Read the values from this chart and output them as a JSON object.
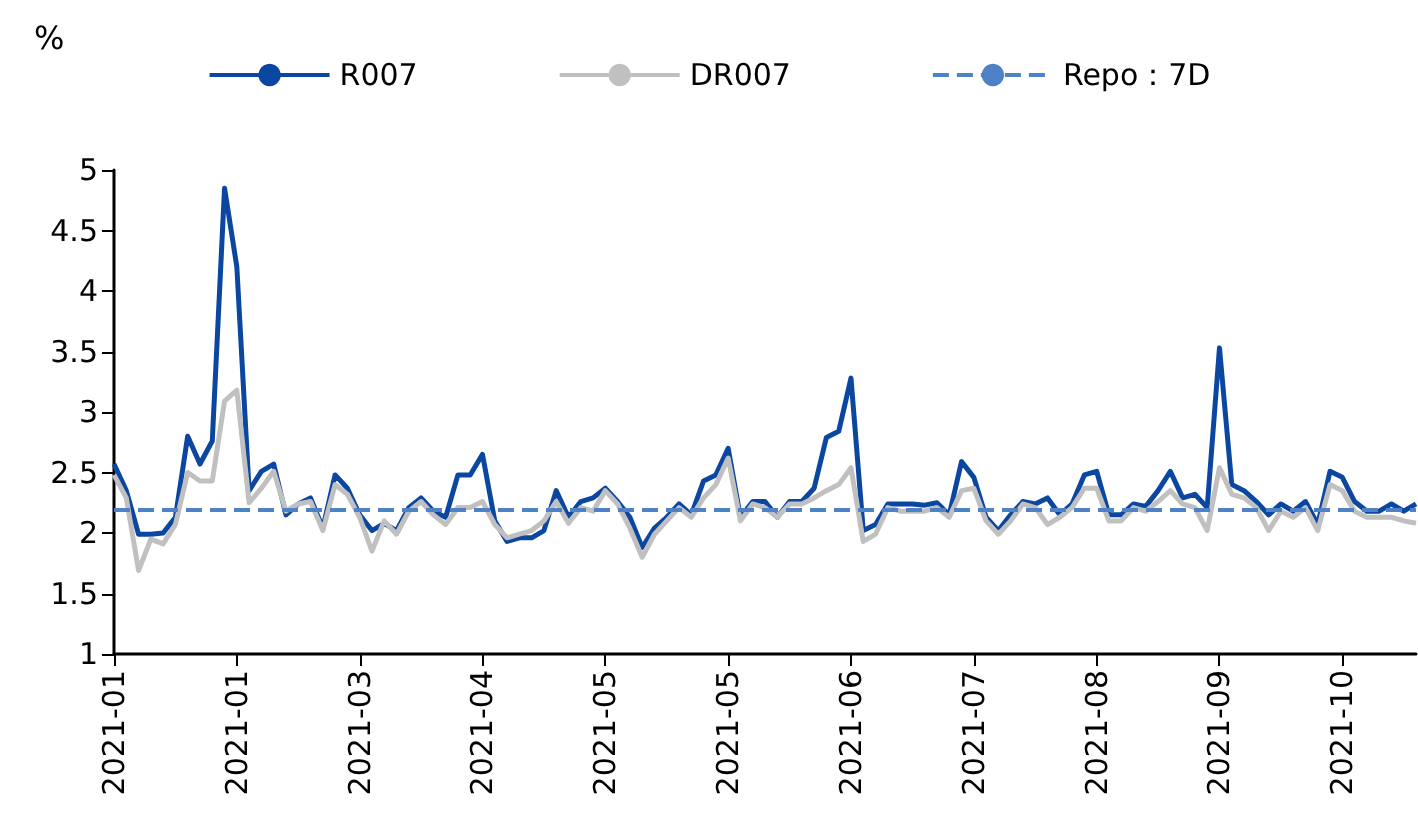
{
  "chart_data": {
    "type": "line",
    "ylabel": "%",
    "categories": [
      "2021-01",
      null,
      null,
      null,
      null,
      null,
      null,
      null,
      null,
      null,
      "2021-01",
      null,
      null,
      null,
      null,
      null,
      null,
      null,
      null,
      null,
      "2021-03",
      null,
      null,
      null,
      null,
      null,
      null,
      null,
      null,
      null,
      "2021-04",
      null,
      null,
      null,
      null,
      null,
      null,
      null,
      null,
      null,
      "2021-05",
      null,
      null,
      null,
      null,
      null,
      null,
      null,
      null,
      null,
      "2021-05",
      null,
      null,
      null,
      null,
      null,
      null,
      null,
      null,
      null,
      "2021-06",
      null,
      null,
      null,
      null,
      null,
      null,
      null,
      null,
      null,
      "2021-07",
      null,
      null,
      null,
      null,
      null,
      null,
      null,
      null,
      null,
      "2021-08",
      null,
      null,
      null,
      null,
      null,
      null,
      null,
      null,
      null,
      "2021-09",
      null,
      null,
      null,
      null,
      null,
      null,
      null,
      null,
      null,
      "2021-10",
      null,
      null,
      null,
      null,
      null,
      null
    ],
    "series": [
      {
        "name": "R007",
        "color": "#0b47a1",
        "values": [
          2.57,
          2.35,
          1.99,
          1.99,
          2.0,
          2.13,
          2.8,
          2.57,
          2.76,
          4.85,
          4.2,
          2.35,
          2.51,
          2.57,
          2.15,
          2.24,
          2.29,
          2.04,
          2.48,
          2.37,
          2.15,
          2.02,
          2.08,
          2.02,
          2.21,
          2.29,
          2.18,
          2.13,
          2.48,
          2.48,
          2.65,
          2.1,
          1.93,
          1.96,
          1.96,
          2.02,
          2.35,
          2.13,
          2.26,
          2.29,
          2.37,
          2.26,
          2.13,
          1.88,
          2.04,
          2.13,
          2.24,
          2.15,
          2.43,
          2.48,
          2.7,
          2.13,
          2.26,
          2.26,
          2.13,
          2.26,
          2.26,
          2.37,
          2.79,
          2.84,
          3.28,
          2.02,
          2.07,
          2.24,
          2.24,
          2.24,
          2.23,
          2.25,
          2.15,
          2.59,
          2.46,
          2.13,
          2.02,
          2.15,
          2.26,
          2.24,
          2.29,
          2.15,
          2.24,
          2.48,
          2.51,
          2.15,
          2.15,
          2.24,
          2.22,
          2.35,
          2.51,
          2.29,
          2.32,
          2.21,
          3.53,
          2.4,
          2.35,
          2.26,
          2.15,
          2.24,
          2.18,
          2.26,
          2.07,
          2.51,
          2.46,
          2.26,
          2.18,
          2.18,
          2.24,
          2.18,
          2.24
        ]
      },
      {
        "name": "DR007",
        "color": "#c0c0c0",
        "values": [
          2.48,
          2.29,
          1.69,
          1.95,
          1.91,
          2.07,
          2.5,
          2.43,
          2.43,
          3.09,
          3.18,
          2.25,
          2.37,
          2.51,
          2.18,
          2.24,
          2.26,
          2.02,
          2.4,
          2.32,
          2.13,
          1.85,
          2.1,
          1.99,
          2.18,
          2.26,
          2.15,
          2.07,
          2.21,
          2.21,
          2.26,
          2.07,
          1.96,
          1.99,
          2.02,
          2.1,
          2.26,
          2.08,
          2.21,
          2.18,
          2.35,
          2.24,
          2.04,
          1.8,
          1.99,
          2.1,
          2.21,
          2.13,
          2.29,
          2.4,
          2.62,
          2.1,
          2.24,
          2.21,
          2.13,
          2.24,
          2.24,
          2.29,
          2.35,
          2.4,
          2.54,
          1.93,
          1.99,
          2.21,
          2.18,
          2.18,
          2.18,
          2.21,
          2.13,
          2.35,
          2.37,
          2.1,
          1.99,
          2.1,
          2.24,
          2.21,
          2.07,
          2.13,
          2.21,
          2.37,
          2.37,
          2.1,
          2.1,
          2.21,
          2.18,
          2.26,
          2.35,
          2.24,
          2.21,
          2.02,
          2.54,
          2.32,
          2.29,
          2.21,
          2.02,
          2.18,
          2.13,
          2.21,
          2.02,
          2.4,
          2.35,
          2.18,
          2.13,
          2.13,
          2.13,
          2.1,
          2.08
        ]
      }
    ],
    "ref_lines": [
      {
        "axis": "y",
        "value": 2.2,
        "label": "Repo：7D",
        "color": "#4f81c7",
        "line_style": "dashed"
      }
    ],
    "ylim": [
      1,
      5
    ],
    "yticks": [
      1,
      1.5,
      2,
      2.5,
      3,
      3.5,
      4,
      4.5,
      5
    ],
    "legend": "top",
    "grid": false,
    "marker": "none",
    "line_style": "solid"
  }
}
